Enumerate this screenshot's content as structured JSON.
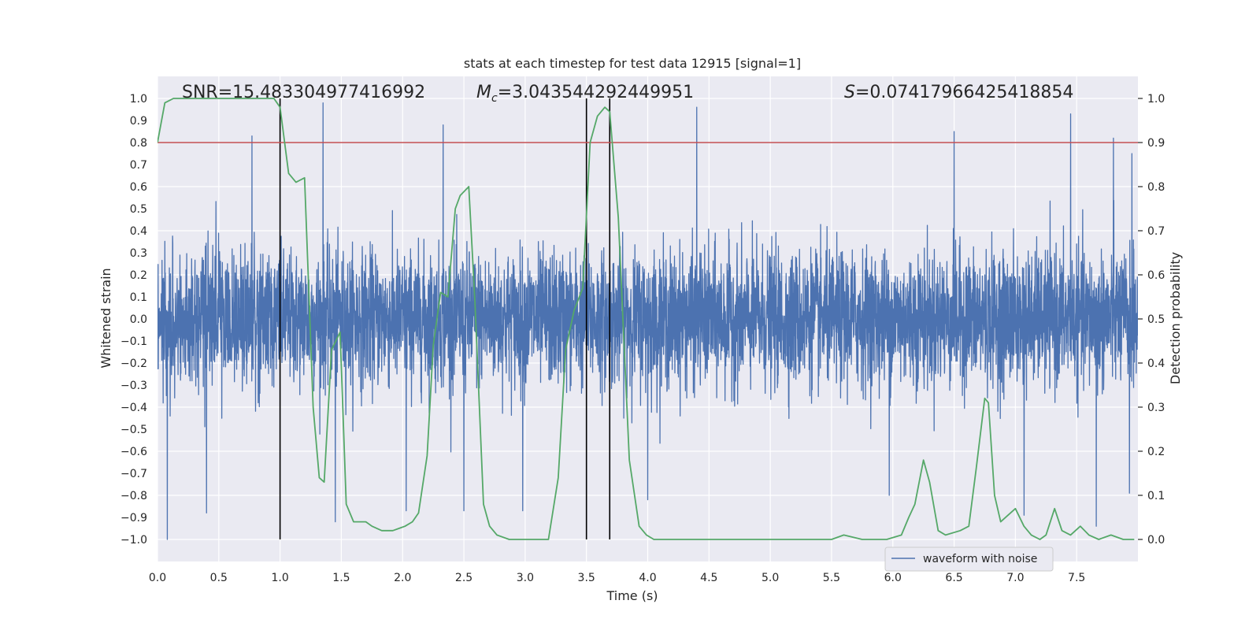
{
  "chart_data": {
    "type": "line",
    "title": "stats at each timestep for test data 12915 [signal=1]",
    "xlabel": "Time (s)",
    "ylabel_left": "Whitened strain",
    "ylabel_right": "Detection probability",
    "xlim": [
      0.0,
      8.0
    ],
    "ylim_left": [
      -1.1,
      1.1
    ],
    "ylim_right": [
      -0.05,
      1.05
    ],
    "x_ticks": [
      0.0,
      0.5,
      1.0,
      1.5,
      2.0,
      2.5,
      3.0,
      3.5,
      4.0,
      4.5,
      5.0,
      5.5,
      6.0,
      6.5,
      7.0,
      7.5
    ],
    "x_tick_labels": [
      "0.0",
      "0.5",
      "1.0",
      "1.5",
      "2.0",
      "2.5",
      "3.0",
      "3.5",
      "4.0",
      "4.5",
      "5.0",
      "5.5",
      "6.0",
      "6.5",
      "7.0",
      "7.5"
    ],
    "y_left_ticks": [
      1.0,
      0.9,
      0.8,
      0.7,
      0.6,
      0.5,
      0.4,
      0.3,
      0.2,
      0.1,
      0.0,
      -0.1,
      -0.2,
      -0.3,
      -0.4,
      -0.5,
      -0.6,
      -0.7,
      -0.8,
      -0.9,
      -1.0
    ],
    "y_left_tick_labels": [
      "1.0",
      "0.9",
      "0.8",
      "0.7",
      "0.6",
      "0.5",
      "0.4",
      "0.3",
      "0.2",
      "0.1",
      "0.0",
      "−0.1",
      "−0.2",
      "−0.3",
      "−0.4",
      "−0.5",
      "−0.6",
      "−0.7",
      "−0.8",
      "−0.9",
      "−1.0"
    ],
    "y_right_ticks": [
      1.0,
      0.9,
      0.8,
      0.7,
      0.6,
      0.5,
      0.4,
      0.3,
      0.2,
      0.1,
      0.0
    ],
    "y_right_tick_labels": [
      "1.0",
      "0.9",
      "0.8",
      "0.7",
      "0.6",
      "0.5",
      "0.4",
      "0.3",
      "0.2",
      "0.1",
      "0.0"
    ],
    "annotations": {
      "snr": "SNR=15.483304977416992",
      "mc_symbol": "M",
      "mc_subscript": "c",
      "mc_value": "=3.043544292449951",
      "s_symbol": "S",
      "s_value": "=0.07417966425418854"
    },
    "threshold_line": {
      "axis": "right",
      "y": 0.9,
      "color": "#c44e52"
    },
    "vertical_markers": [
      {
        "x": 1.0,
        "ymin": -1.0,
        "ymax": 1.0
      },
      {
        "x": 3.5,
        "ymin": -1.0,
        "ymax": 1.0
      },
      {
        "x": 3.69,
        "ymin": -1.0,
        "ymax": 1.0
      }
    ],
    "series": [
      {
        "name": "waveform with noise",
        "axis": "left",
        "color": "#4c72b0",
        "style": "dense noise band, typical extent ±0.4 with spikes to about ±1.0",
        "noise_sigma": 0.15,
        "spike_peaks": [
          {
            "x": 1.35,
            "y": 0.98
          },
          {
            "x": 0.77,
            "y": 0.83
          },
          {
            "x": 2.33,
            "y": 0.88
          },
          {
            "x": 4.4,
            "y": 0.96
          },
          {
            "x": 6.5,
            "y": 0.85
          },
          {
            "x": 7.45,
            "y": 0.93
          },
          {
            "x": 7.8,
            "y": 0.82
          },
          {
            "x": 7.95,
            "y": 0.75
          },
          {
            "x": 0.08,
            "y": -1.0
          },
          {
            "x": 0.4,
            "y": -0.88
          },
          {
            "x": 1.45,
            "y": -0.92
          },
          {
            "x": 2.03,
            "y": -0.87
          },
          {
            "x": 2.5,
            "y": -0.87
          },
          {
            "x": 2.98,
            "y": -0.87
          },
          {
            "x": 4.0,
            "y": -0.82
          },
          {
            "x": 5.97,
            "y": -0.8
          },
          {
            "x": 7.07,
            "y": -0.89
          },
          {
            "x": 7.66,
            "y": -0.94
          },
          {
            "x": 7.93,
            "y": -0.79
          }
        ]
      },
      {
        "name": "detection probability",
        "axis": "right",
        "color": "#55a868",
        "x": [
          0.0,
          0.06,
          0.13,
          0.25,
          0.5,
          0.75,
          0.95,
          1.0,
          1.07,
          1.13,
          1.2,
          1.27,
          1.32,
          1.36,
          1.42,
          1.49,
          1.54,
          1.6,
          1.7,
          1.75,
          1.83,
          1.87,
          1.92,
          2.02,
          2.08,
          2.13,
          2.2,
          2.25,
          2.31,
          2.37,
          2.43,
          2.47,
          2.54,
          2.59,
          2.66,
          2.71,
          2.77,
          2.87,
          2.98,
          3.1,
          3.19,
          3.27,
          3.33,
          3.4,
          3.47,
          3.53,
          3.59,
          3.65,
          3.69,
          3.76,
          3.85,
          3.93,
          3.99,
          4.05,
          4.2,
          4.5,
          4.8,
          5.0,
          5.2,
          5.5,
          5.6,
          5.75,
          5.85,
          5.95,
          6.07,
          6.13,
          6.18,
          6.25,
          6.3,
          6.37,
          6.43,
          6.55,
          6.62,
          6.68,
          6.75,
          6.78,
          6.83,
          6.88,
          7.0,
          7.07,
          7.13,
          7.2,
          7.25,
          7.32,
          7.38,
          7.45,
          7.53,
          7.6,
          7.68,
          7.78,
          7.88,
          7.97
        ],
        "y": [
          0.9,
          0.99,
          1.0,
          1.0,
          1.0,
          1.0,
          1.0,
          0.98,
          0.83,
          0.81,
          0.82,
          0.3,
          0.14,
          0.13,
          0.43,
          0.47,
          0.08,
          0.04,
          0.04,
          0.03,
          0.02,
          0.02,
          0.02,
          0.03,
          0.04,
          0.06,
          0.19,
          0.44,
          0.56,
          0.55,
          0.75,
          0.78,
          0.8,
          0.54,
          0.08,
          0.03,
          0.01,
          0.0,
          0.0,
          0.0,
          0.0,
          0.14,
          0.43,
          0.52,
          0.57,
          0.9,
          0.96,
          0.98,
          0.97,
          0.73,
          0.18,
          0.03,
          0.01,
          0.0,
          0.0,
          0.0,
          0.0,
          0.0,
          0.0,
          0.0,
          0.01,
          0.0,
          0.0,
          0.0,
          0.01,
          0.05,
          0.08,
          0.18,
          0.13,
          0.02,
          0.01,
          0.02,
          0.03,
          0.16,
          0.32,
          0.31,
          0.1,
          0.04,
          0.07,
          0.03,
          0.01,
          0.0,
          0.01,
          0.07,
          0.02,
          0.01,
          0.03,
          0.01,
          0.0,
          0.01,
          0.0,
          0.0
        ]
      }
    ],
    "legend": {
      "entries": [
        "waveform with noise"
      ],
      "location": "lower-right"
    }
  }
}
